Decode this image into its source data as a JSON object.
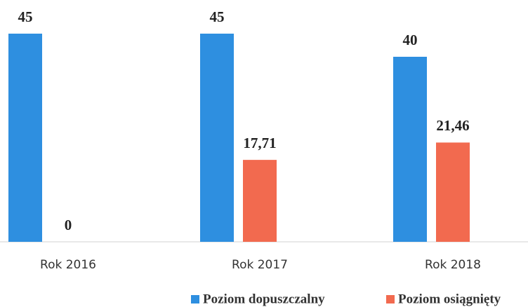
{
  "chart_data": {
    "type": "bar",
    "categories": [
      "Rok 2016",
      "Rok 2017",
      "Rok 2018"
    ],
    "series": [
      {
        "name": "Poziom dopuszczalny",
        "color": "#2e8fe0",
        "values": [
          45,
          45,
          40
        ],
        "value_labels": [
          "45",
          "45",
          "40"
        ]
      },
      {
        "name": "Poziom osiągnięty",
        "color": "#f26a4f",
        "values": [
          0,
          17.71,
          21.46
        ],
        "value_labels": [
          "0",
          "17,71",
          "21,46"
        ]
      }
    ]
  }
}
